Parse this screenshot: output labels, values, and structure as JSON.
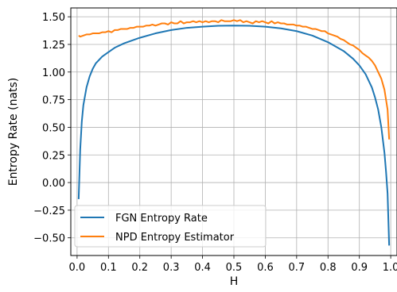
{
  "chart_data": {
    "type": "line",
    "title": "",
    "xlabel": "H",
    "ylabel": "Entropy Rate (nats)",
    "xlim": [
      -0.02,
      1.02
    ],
    "ylim": [
      -0.66,
      1.58
    ],
    "xticks": [
      0.0,
      0.1,
      0.2,
      0.3,
      0.4,
      0.5,
      0.6,
      0.7,
      0.8,
      0.9,
      1.0
    ],
    "xtick_labels": [
      "0.0",
      "0.1",
      "0.2",
      "0.3",
      "0.4",
      "0.5",
      "0.6",
      "0.7",
      "0.8",
      "0.9",
      "1.0"
    ],
    "yticks": [
      -0.5,
      -0.25,
      0.0,
      0.25,
      0.5,
      0.75,
      1.0,
      1.25,
      1.5
    ],
    "ytick_labels": [
      "−0.50",
      "−0.25",
      "0.00",
      "0.25",
      "0.50",
      "0.75",
      "1.00",
      "1.25",
      "1.50"
    ],
    "grid": true,
    "legend_position": "lower-left",
    "series": [
      {
        "name": "FGN Entropy Rate",
        "color": "#1f77b4",
        "x": [
          0.005,
          0.01,
          0.015,
          0.02,
          0.03,
          0.04,
          0.05,
          0.06,
          0.08,
          0.1,
          0.12,
          0.15,
          0.2,
          0.25,
          0.3,
          0.35,
          0.4,
          0.45,
          0.5,
          0.55,
          0.6,
          0.65,
          0.7,
          0.75,
          0.8,
          0.85,
          0.88,
          0.9,
          0.92,
          0.94,
          0.95,
          0.96,
          0.97,
          0.98,
          0.985,
          0.99,
          0.995
        ],
        "y": [
          -0.15,
          0.3,
          0.55,
          0.7,
          0.86,
          0.96,
          1.03,
          1.08,
          1.14,
          1.18,
          1.22,
          1.26,
          1.31,
          1.35,
          1.38,
          1.4,
          1.41,
          1.418,
          1.42,
          1.418,
          1.41,
          1.395,
          1.37,
          1.33,
          1.27,
          1.19,
          1.12,
          1.06,
          0.98,
          0.86,
          0.77,
          0.66,
          0.5,
          0.27,
          0.1,
          -0.1,
          -0.57
        ]
      },
      {
        "name": "NPD Entropy Estimator",
        "color": "#ff7f0e",
        "x": [
          0.005,
          0.01,
          0.02,
          0.03,
          0.04,
          0.05,
          0.06,
          0.07,
          0.08,
          0.09,
          0.1,
          0.11,
          0.12,
          0.13,
          0.14,
          0.15,
          0.16,
          0.17,
          0.18,
          0.19,
          0.2,
          0.21,
          0.22,
          0.23,
          0.24,
          0.25,
          0.26,
          0.27,
          0.28,
          0.29,
          0.3,
          0.31,
          0.32,
          0.33,
          0.34,
          0.35,
          0.36,
          0.37,
          0.38,
          0.39,
          0.4,
          0.41,
          0.42,
          0.43,
          0.44,
          0.45,
          0.46,
          0.47,
          0.48,
          0.49,
          0.5,
          0.51,
          0.52,
          0.53,
          0.54,
          0.55,
          0.56,
          0.57,
          0.58,
          0.59,
          0.6,
          0.61,
          0.62,
          0.63,
          0.64,
          0.65,
          0.66,
          0.67,
          0.68,
          0.69,
          0.7,
          0.71,
          0.72,
          0.73,
          0.74,
          0.75,
          0.76,
          0.77,
          0.78,
          0.79,
          0.8,
          0.81,
          0.82,
          0.83,
          0.84,
          0.85,
          0.86,
          0.87,
          0.88,
          0.89,
          0.9,
          0.91,
          0.92,
          0.93,
          0.94,
          0.95,
          0.96,
          0.97,
          0.98,
          0.99,
          0.995
        ],
        "y": [
          1.33,
          1.32,
          1.33,
          1.34,
          1.34,
          1.35,
          1.35,
          1.35,
          1.36,
          1.36,
          1.37,
          1.36,
          1.38,
          1.38,
          1.39,
          1.39,
          1.39,
          1.4,
          1.4,
          1.41,
          1.41,
          1.41,
          1.42,
          1.42,
          1.43,
          1.42,
          1.43,
          1.44,
          1.44,
          1.43,
          1.45,
          1.44,
          1.44,
          1.46,
          1.44,
          1.45,
          1.45,
          1.46,
          1.45,
          1.46,
          1.45,
          1.46,
          1.45,
          1.46,
          1.46,
          1.45,
          1.47,
          1.46,
          1.46,
          1.46,
          1.47,
          1.46,
          1.47,
          1.45,
          1.46,
          1.45,
          1.44,
          1.46,
          1.45,
          1.46,
          1.45,
          1.44,
          1.46,
          1.44,
          1.45,
          1.44,
          1.44,
          1.43,
          1.43,
          1.43,
          1.42,
          1.42,
          1.41,
          1.41,
          1.4,
          1.39,
          1.39,
          1.38,
          1.37,
          1.37,
          1.35,
          1.34,
          1.33,
          1.32,
          1.3,
          1.29,
          1.27,
          1.25,
          1.24,
          1.22,
          1.2,
          1.17,
          1.15,
          1.13,
          1.1,
          1.06,
          1.0,
          0.94,
          0.84,
          0.66,
          0.39
        ]
      }
    ]
  }
}
